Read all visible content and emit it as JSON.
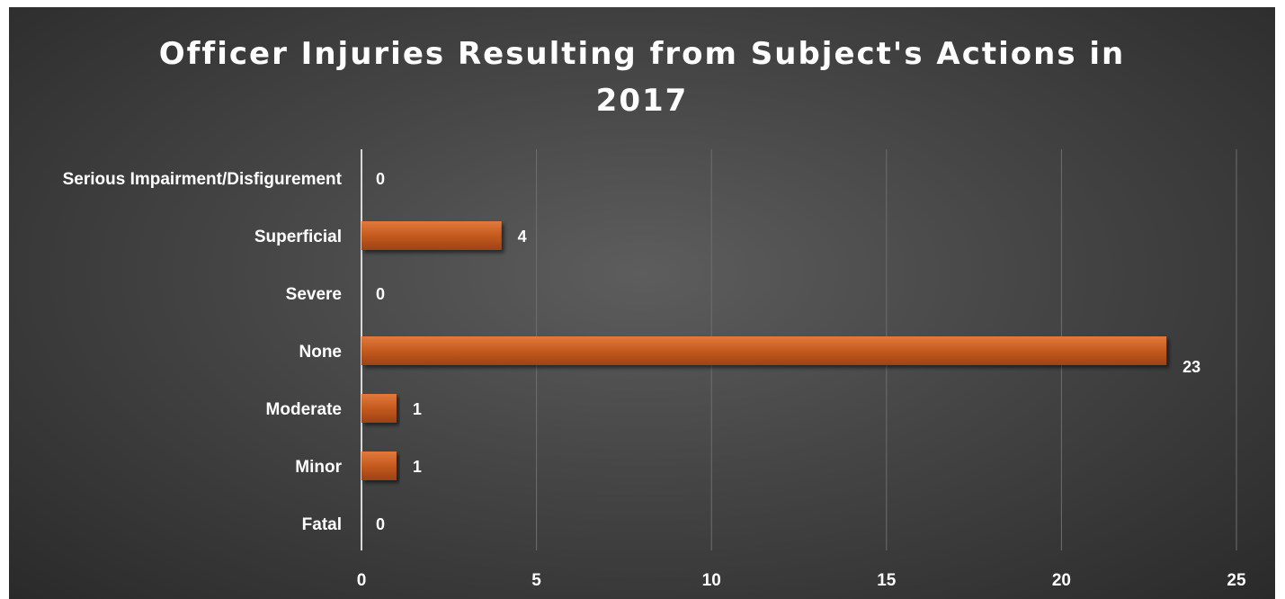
{
  "chart_data": {
    "type": "bar",
    "orientation": "horizontal",
    "title_lines": [
      "Officer Injuries Resulting from Subject's Actions in",
      "2017"
    ],
    "categories": [
      "Serious Impairment/Disfigurement",
      "Superficial",
      "Severe",
      "None",
      "Moderate",
      "Minor",
      "Fatal"
    ],
    "values": [
      0,
      4,
      0,
      23,
      1,
      1,
      0
    ],
    "value_labels": [
      "0",
      "4",
      "0",
      "23",
      "1",
      "1",
      "0"
    ],
    "xlim": [
      0,
      25
    ],
    "xticks": [
      "0",
      "5",
      "10",
      "15",
      "20",
      "25"
    ],
    "xtick_values": [
      0,
      5,
      10,
      15,
      20,
      25
    ],
    "grid": "vertical",
    "bar_color": "#c55a1f",
    "background_color": "#454545",
    "text_color": "#ffffff"
  }
}
